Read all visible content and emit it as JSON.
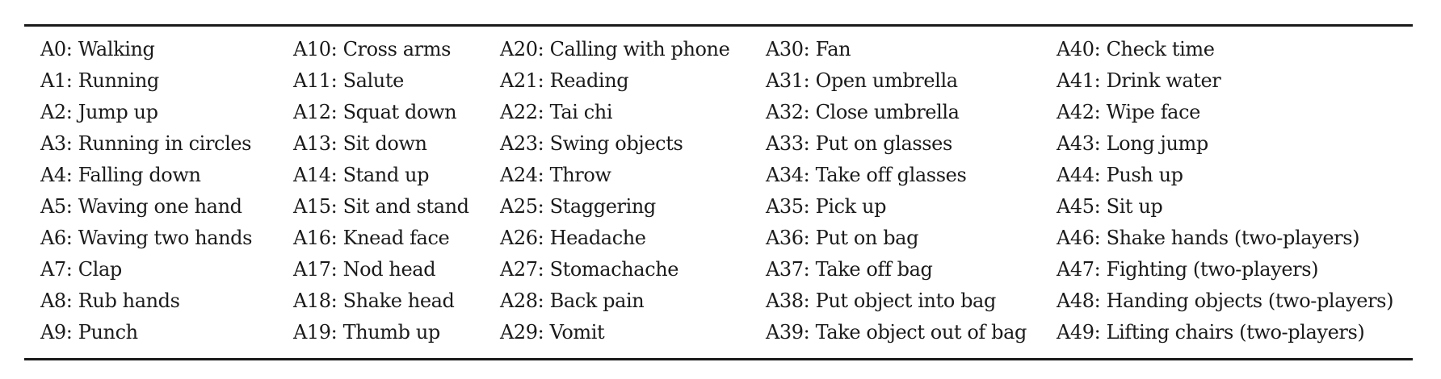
{
  "table": {
    "columns": [
      [
        "A0: Walking",
        "A1: Running",
        "A2: Jump up",
        "A3: Running in circles",
        "A4: Falling down",
        "A5: Waving one hand",
        "A6: Waving two hands",
        "A7: Clap",
        "A8: Rub hands",
        "A9: Punch"
      ],
      [
        "A10: Cross arms",
        "A11: Salute",
        "A12: Squat down",
        "A13: Sit down",
        "A14: Stand up",
        "A15: Sit and stand",
        "A16: Knead face",
        "A17: Nod head",
        "A18: Shake head",
        "A19: Thumb up"
      ],
      [
        "A20: Calling with phone",
        "A21: Reading",
        "A22: Tai chi",
        "A23: Swing objects",
        "A24: Throw",
        "A25: Staggering",
        "A26: Headache",
        "A27: Stomachache",
        "A28: Back pain",
        "A29: Vomit"
      ],
      [
        "A30: Fan",
        "A31: Open umbrella",
        "A32: Close umbrella",
        "A33: Put on glasses",
        "A34: Take off glasses",
        "A35: Pick up",
        "A36: Put on bag",
        "A37: Take off bag",
        "A38: Put object into bag",
        "A39: Take object out of bag"
      ],
      [
        "A40: Check time",
        "A41: Drink water",
        "A42: Wipe face",
        "A43: Long jump",
        "A44: Push up",
        "A45: Sit up",
        "A46: Shake hands (two-players)",
        "A47: Fighting (two-players)",
        "A48: Handing objects (two-players)",
        "A49: Lifting chairs (two-players)"
      ]
    ]
  }
}
